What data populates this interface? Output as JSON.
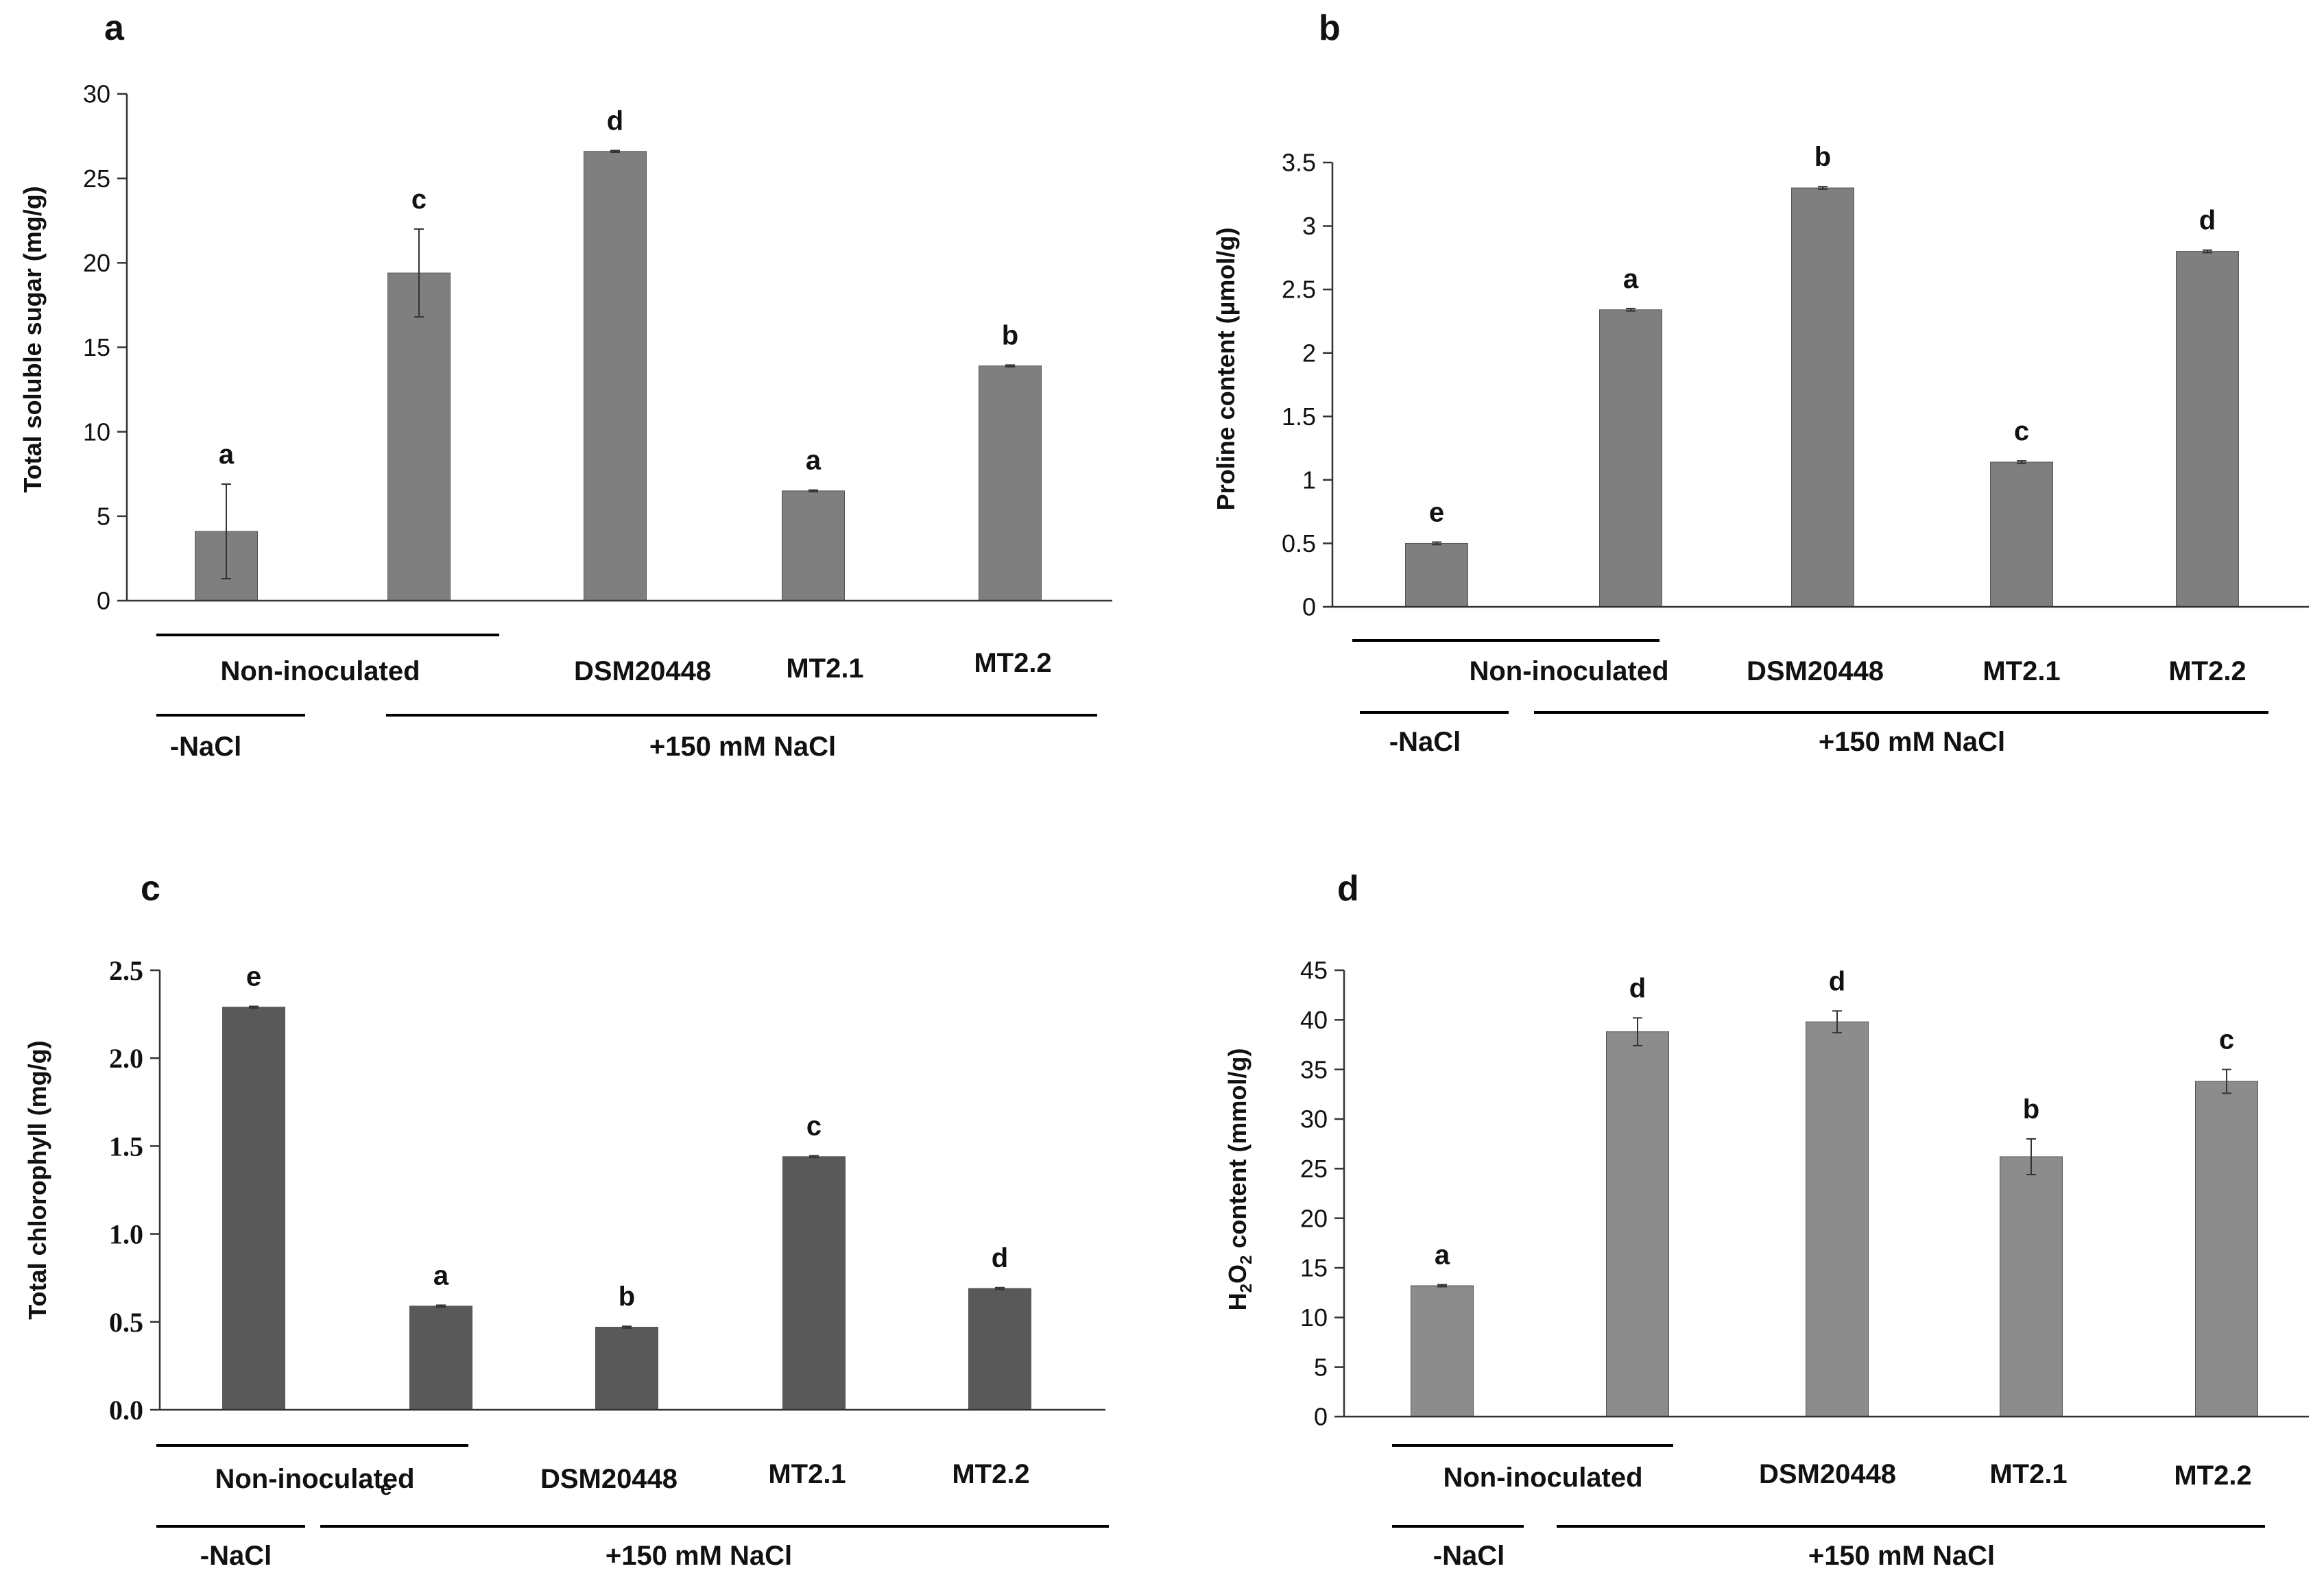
{
  "chart_data": [
    {
      "panel": "a",
      "type": "bar",
      "ylabel": "Total soluble sugar  (mg/g)",
      "ylim": [
        0,
        30
      ],
      "yticks": [
        "0",
        "5",
        "10",
        "15",
        "20",
        "25",
        "30"
      ],
      "categories": [
        "Non-inoculated",
        "Non-inoculated",
        "DSM20448",
        "MT2.1",
        "MT2.2"
      ],
      "values": [
        4.1,
        19.4,
        26.6,
        6.5,
        13.9
      ],
      "errors": [
        2.8,
        2.6,
        0.05,
        0.05,
        0.05
      ],
      "letters": [
        "a",
        "c",
        "d",
        "a",
        "b"
      ],
      "bar_color": "#7f7f7f",
      "group_labels": {
        "non_inoculated": "Non-inoculated",
        "minus_nacl": "-NaCl",
        "plus_nacl": "+150 mM NaCl"
      }
    },
    {
      "panel": "b",
      "type": "bar",
      "ylabel": "Proline content (µmol/g)",
      "ylim": [
        0,
        3.5
      ],
      "yticks": [
        "0",
        "0.5",
        "1",
        "1.5",
        "2",
        "2.5",
        "3",
        "3.5"
      ],
      "categories": [
        "Non-inoculated",
        "Non-inoculated",
        "DSM20448",
        "MT2.1",
        "MT2.2"
      ],
      "values": [
        0.5,
        2.34,
        3.3,
        1.14,
        2.8
      ],
      "errors": [
        0.01,
        0.01,
        0.01,
        0.01,
        0.01
      ],
      "letters": [
        "e",
        "a",
        "b",
        "c",
        "d"
      ],
      "bar_color": "#7f7f7f",
      "group_labels": {
        "non_inoculated": "Non-inoculated",
        "minus_nacl": "-NaCl",
        "plus_nacl": "+150 mM NaCl"
      }
    },
    {
      "panel": "c",
      "type": "bar",
      "ylabel": "Total chlorophyll (mg/g)",
      "ylim": [
        0,
        2.5
      ],
      "yticks": [
        "0.0",
        "0.5",
        "1.0",
        "1.5",
        "2.0",
        "2.5"
      ],
      "categories": [
        "Non-inoculated",
        "Non-inoculated",
        "DSM20448",
        "MT2.1",
        "MT2.2"
      ],
      "values": [
        2.29,
        0.59,
        0.47,
        1.44,
        0.69
      ],
      "errors": [
        0.005,
        0.005,
        0.005,
        0.005,
        0.005
      ],
      "letters": [
        "e",
        "a",
        "b",
        "c",
        "d"
      ],
      "stray_label": "e",
      "bar_color": "#595959",
      "group_labels": {
        "non_inoculated": "Non-inoculated",
        "minus_nacl": "-NaCl",
        "plus_nacl": "+150 mM NaCl"
      }
    },
    {
      "panel": "d",
      "type": "bar",
      "ylabel_main": "H",
      "ylabel_sub1": "2",
      "ylabel_mid": "O",
      "ylabel_sub2": "2",
      "ylabel_rest": " content (mmol/g)",
      "ylim": [
        0,
        45
      ],
      "yticks": [
        "0",
        "5",
        "10",
        "15",
        "20",
        "25",
        "30",
        "35",
        "40",
        "45"
      ],
      "categories": [
        "Non-inoculated",
        "Non-inoculated",
        "DSM20448",
        "MT2.1",
        "MT2.2"
      ],
      "values": [
        13.2,
        38.8,
        39.8,
        26.2,
        33.8
      ],
      "errors": [
        0.1,
        1.4,
        1.1,
        1.8,
        1.2
      ],
      "letters": [
        "a",
        "d",
        "d",
        "b",
        "c"
      ],
      "bar_color": "#8c8c8c",
      "group_labels": {
        "non_inoculated": "Non-inoculated",
        "minus_nacl": "-NaCl",
        "plus_nacl": "+150 mM NaCl"
      }
    }
  ]
}
